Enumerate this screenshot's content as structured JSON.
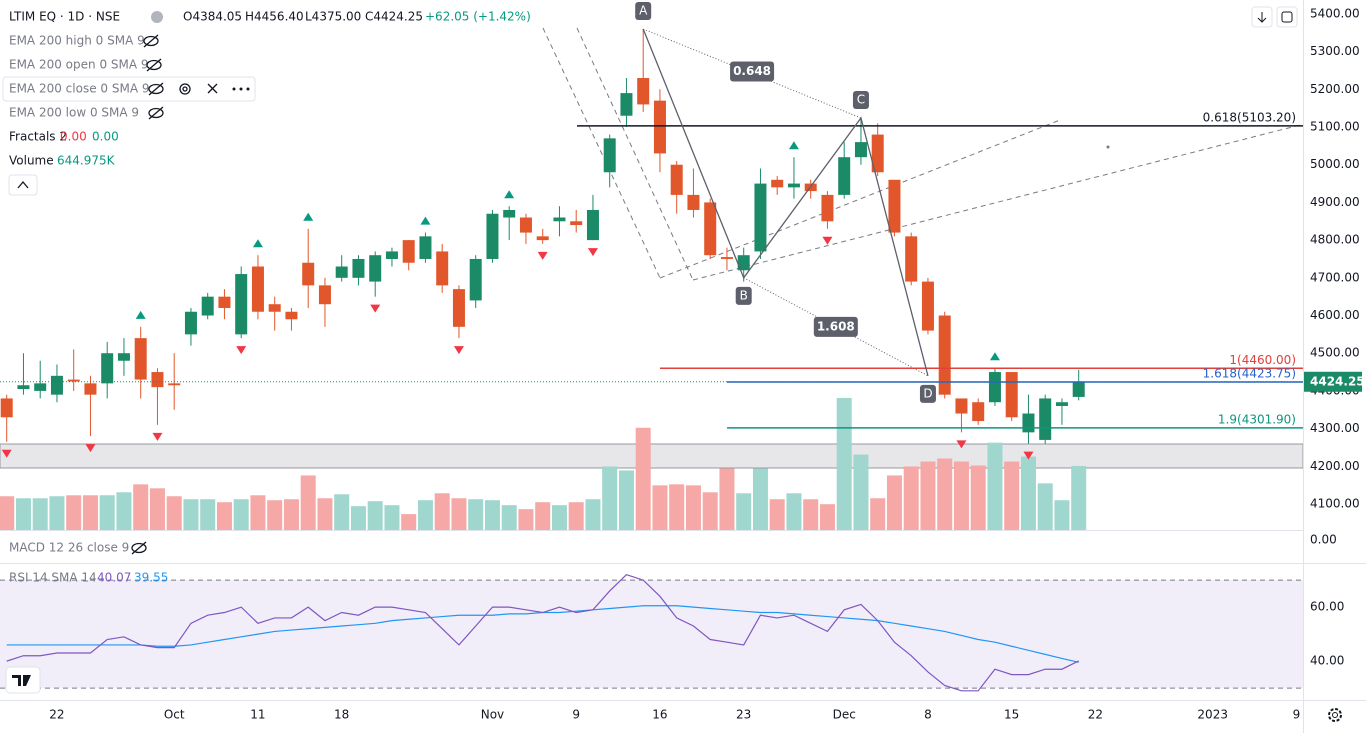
{
  "chart_data": {
    "type": "candlestick",
    "symbol": "LTIM EQ · 1D · NSE",
    "ohlc_legend": [
      "O4384.05",
      "H4456.40",
      "L4375.00",
      "C4424.25",
      "+62.05 (+1.42%)"
    ],
    "indicators": [
      "EMA 200 high 0 SMA 9",
      "EMA 200 open 0 SMA 9",
      "EMA 200 close 0 SMA 9",
      "EMA 200 low 0 SMA 9"
    ],
    "fractals": {
      "name": "Fractals 2",
      "values": [
        "0.00",
        "0.00"
      ],
      "up": [
        8,
        15,
        18,
        25,
        30,
        47,
        59
      ],
      "down": [
        0,
        5,
        9,
        14,
        22,
        27,
        32,
        35,
        49,
        57,
        61
      ],
      "up_color": "#089981",
      "down_color": "#f23645"
    },
    "volume_name": "Volume",
    "volume_label": "644.975K",
    "up_color": "#1b8a67",
    "down_color": "#e2562b",
    "volume_up_color": "#9fd6ce",
    "volume_down_color": "#f5a8a6",
    "ylim": [
      4031,
      5437
    ],
    "yticks": [
      {
        "value": 4100,
        "label": "4100.00"
      },
      {
        "value": 4200,
        "label": "4200.00"
      },
      {
        "value": 4300,
        "label": "4300.00"
      },
      {
        "value": 4400,
        "label": "4400.00"
      },
      {
        "value": 4500,
        "label": "4500.00"
      },
      {
        "value": 4600,
        "label": "4600.00"
      },
      {
        "value": 4700,
        "label": "4700.00"
      },
      {
        "value": 4800,
        "label": "4800.00"
      },
      {
        "value": 4900,
        "label": "4900.00"
      },
      {
        "value": 5000,
        "label": "5000.00"
      },
      {
        "value": 5100,
        "label": "5100.00"
      },
      {
        "value": 5200,
        "label": "5200.00"
      },
      {
        "value": 5300,
        "label": "5300.00"
      },
      {
        "value": 5400,
        "label": "5400.00"
      }
    ],
    "xticks": [
      {
        "value": 3,
        "label": "22"
      },
      {
        "value": 10,
        "label": "Oct"
      },
      {
        "value": 15,
        "label": "11"
      },
      {
        "value": 20,
        "label": "18"
      },
      {
        "value": 29,
        "label": "Nov"
      },
      {
        "value": 34,
        "label": "9"
      },
      {
        "value": 39,
        "label": "16"
      },
      {
        "value": 44,
        "label": "23"
      },
      {
        "value": 50,
        "label": "Dec"
      },
      {
        "value": 55,
        "label": "8"
      },
      {
        "value": 60,
        "label": "15"
      },
      {
        "value": 65,
        "label": "22"
      },
      {
        "value": 72,
        "label": "2023"
      },
      {
        "value": 77,
        "label": "9"
      }
    ],
    "last_price": 4424.25,
    "last_price_label": "4424.25",
    "ohlc": [
      [
        4380,
        4390,
        4265,
        4330
      ],
      [
        4405,
        4500,
        4390,
        4415
      ],
      [
        4400,
        4480,
        4380,
        4420
      ],
      [
        4390,
        4470,
        4370,
        4440
      ],
      [
        4430,
        4510,
        4400,
        4425
      ],
      [
        4420,
        4440,
        4280,
        4390
      ],
      [
        4420,
        4530,
        4380,
        4500
      ],
      [
        4480,
        4540,
        4440,
        4500
      ],
      [
        4540,
        4570,
        4380,
        4430
      ],
      [
        4450,
        4460,
        4310,
        4410
      ],
      [
        4420,
        4500,
        4350,
        4415
      ],
      [
        4550,
        4620,
        4520,
        4610
      ],
      [
        4600,
        4660,
        4590,
        4650
      ],
      [
        4650,
        4670,
        4590,
        4620
      ],
      [
        4550,
        4730,
        4540,
        4710
      ],
      [
        4730,
        4760,
        4590,
        4610
      ],
      [
        4630,
        4650,
        4560,
        4610
      ],
      [
        4610,
        4620,
        4560,
        4590
      ],
      [
        4740,
        4830,
        4620,
        4680
      ],
      [
        4680,
        4700,
        4570,
        4630
      ],
      [
        4700,
        4760,
        4690,
        4730
      ],
      [
        4700,
        4760,
        4680,
        4750
      ],
      [
        4690,
        4770,
        4650,
        4760
      ],
      [
        4750,
        4780,
        4730,
        4770
      ],
      [
        4800,
        4800,
        4720,
        4740
      ],
      [
        4750,
        4820,
        4740,
        4810
      ],
      [
        4770,
        4790,
        4660,
        4680
      ],
      [
        4670,
        4680,
        4540,
        4570
      ],
      [
        4640,
        4760,
        4620,
        4750
      ],
      [
        4750,
        4880,
        4740,
        4870
      ],
      [
        4860,
        4890,
        4800,
        4880
      ],
      [
        4860,
        4870,
        4790,
        4820
      ],
      [
        4810,
        4830,
        4790,
        4800
      ],
      [
        4850,
        4890,
        4810,
        4860
      ],
      [
        4850,
        4880,
        4820,
        4840
      ],
      [
        4800,
        4920,
        4800,
        4880
      ],
      [
        4980,
        5080,
        4940,
        5070
      ],
      [
        5130,
        5230,
        5100,
        5190
      ],
      [
        5230,
        5360,
        5140,
        5160
      ],
      [
        5170,
        5200,
        4980,
        5030
      ],
      [
        5000,
        5010,
        4870,
        4920
      ],
      [
        4920,
        4990,
        4860,
        4880
      ],
      [
        4900,
        4910,
        4750,
        4760
      ],
      [
        4755,
        4780,
        4720,
        4750
      ],
      [
        4720,
        4780,
        4690,
        4760
      ],
      [
        4770,
        4990,
        4750,
        4950
      ],
      [
        4960,
        4970,
        4920,
        4940
      ],
      [
        4940,
        5020,
        4910,
        4950
      ],
      [
        4950,
        4960,
        4910,
        4930
      ],
      [
        4920,
        4930,
        4830,
        4850
      ],
      [
        4920,
        5060,
        4910,
        5020
      ],
      [
        5020,
        5120,
        5000,
        5060
      ],
      [
        5080,
        5110,
        4970,
        4980
      ],
      [
        4960,
        4960,
        4810,
        4820
      ],
      [
        4810,
        4820,
        4680,
        4690
      ],
      [
        4690,
        4700,
        4550,
        4560
      ],
      [
        4600,
        4610,
        4380,
        4390
      ],
      [
        4380,
        4380,
        4290,
        4340
      ],
      [
        4370,
        4380,
        4310,
        4320
      ],
      [
        4370,
        4460,
        4360,
        4450
      ],
      [
        4450,
        4450,
        4320,
        4330
      ],
      [
        4290,
        4390,
        4260,
        4340
      ],
      [
        4270,
        4390,
        4260,
        4380
      ],
      [
        4360,
        4380,
        4310,
        4370
      ],
      [
        4384.05,
        4456.4,
        4375.0,
        4424.25
      ]
    ],
    "volume": [
      340,
      320,
      320,
      340,
      350,
      350,
      350,
      380,
      460,
      420,
      340,
      310,
      310,
      280,
      310,
      350,
      300,
      310,
      550,
      320,
      360,
      240,
      290,
      250,
      160,
      300,
      370,
      320,
      310,
      300,
      250,
      210,
      280,
      250,
      280,
      310,
      640,
      600,
      1030,
      450,
      460,
      450,
      380,
      620,
      370,
      620,
      310,
      370,
      310,
      260,
      1330,
      760,
      320,
      550,
      640,
      690,
      720,
      690,
      650,
      880,
      690,
      740,
      470,
      300,
      644.975
    ],
    "pattern": {
      "points": [
        {
          "label": "A",
          "x": 38,
          "y": 5360
        },
        {
          "label": "B",
          "x": 44,
          "y": 4700
        },
        {
          "label": "C",
          "x": 51,
          "y": 5124
        },
        {
          "label": "D",
          "x": 55,
          "y": 4440
        }
      ],
      "ratios": [
        "0.648",
        "1.608"
      ],
      "color": "#5d606b"
    },
    "levels": [
      {
        "label": "0.618(5103.20)",
        "value": 5103.2,
        "color": "#131722"
      },
      {
        "label": "1(4460.00)",
        "value": 4460.0,
        "color": "#e0413a"
      },
      {
        "label": "1.618(4423.75)",
        "value": 4423.75,
        "color": "#2962c8"
      },
      {
        "label": "1.9(4301.90)",
        "value": 4301.9,
        "color": "#0f9580"
      }
    ],
    "macd": {
      "name": "MACD 12 26 close 9",
      "yticks": [
        {
          "value": 0,
          "label": "0.00"
        }
      ]
    },
    "rsi": {
      "name": "RSI 14 SMA 14",
      "value_label": "40.07",
      "sma_label": "39.55",
      "ylim": [
        25.6,
        75.6
      ],
      "yticks": [
        {
          "value": 40,
          "label": "40.00"
        },
        {
          "value": 60,
          "label": "60.00"
        }
      ],
      "band": [
        30,
        70
      ],
      "color": "#7e57c2",
      "sma_color": "#2196f3",
      "values": [
        40,
        42,
        42,
        43,
        43,
        43,
        48,
        49,
        46,
        45,
        45,
        54,
        57,
        58,
        60,
        54,
        56,
        56,
        60,
        55,
        58,
        57,
        60,
        60,
        59,
        58,
        52,
        46,
        53,
        60,
        60,
        59,
        58,
        60,
        58,
        59,
        66,
        72,
        70,
        64,
        56,
        53,
        48,
        47,
        46,
        57,
        56,
        57,
        54,
        51,
        59,
        61,
        55,
        47,
        42,
        36,
        31,
        29,
        29,
        37,
        35,
        35,
        37,
        37,
        40.07
      ],
      "sma": [
        46,
        46,
        46,
        46,
        46,
        46,
        46,
        46,
        46,
        45.5,
        45.5,
        46,
        47,
        48,
        49,
        50,
        51,
        51.5,
        52,
        52.5,
        53,
        53.5,
        54,
        55,
        55.5,
        56,
        56.5,
        57,
        57,
        57,
        57.5,
        57.5,
        58,
        58,
        58.5,
        59,
        59.5,
        60,
        60.5,
        60.5,
        60.5,
        60,
        59.5,
        59,
        58.5,
        58,
        58,
        57.5,
        57,
        56.5,
        56,
        55.5,
        55,
        54,
        53,
        52,
        51,
        49.5,
        48,
        47,
        45.5,
        44,
        42.5,
        41,
        39.55
      ]
    }
  }
}
